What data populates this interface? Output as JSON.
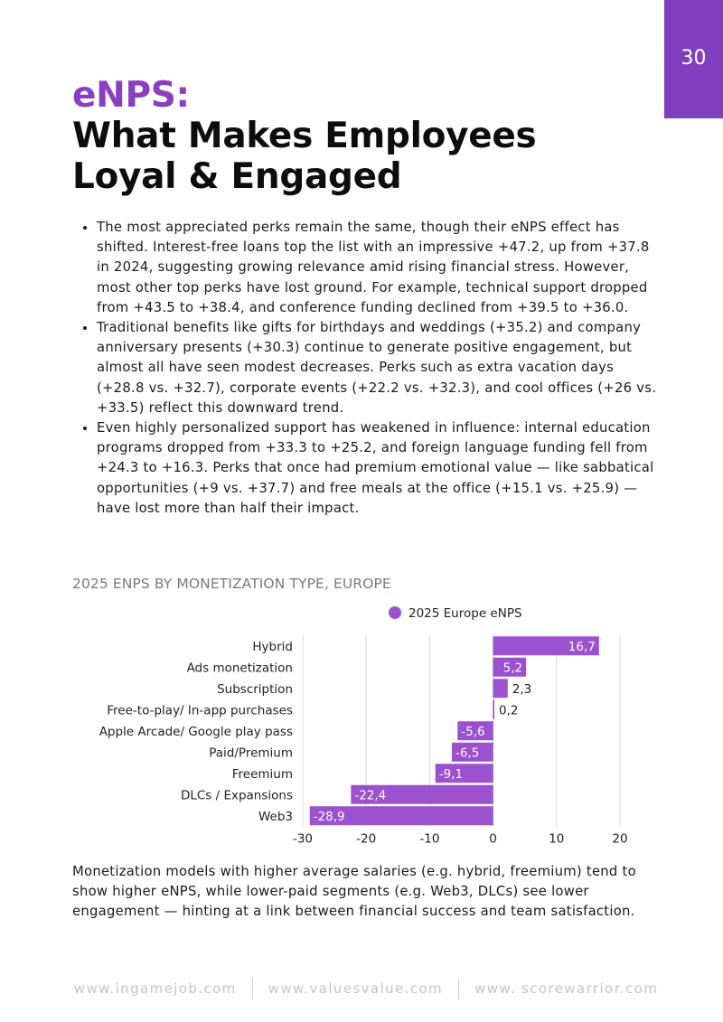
{
  "page_number": "30",
  "title": {
    "accent": "eNPS:",
    "line1": "What Makes Employees",
    "line2": "Loyal & Engaged"
  },
  "bullets": [
    "The most appreciated perks remain the same, though their eNPS effect has shifted. Interest-free loans top the list with an impressive +47.2, up from +37.8 in 2024, suggesting growing relevance amid rising financial stress. However, most other top perks have lost ground. For example, technical support dropped from +43.5 to +38.4, and conference funding declined from +39.5 to +36.0.",
    "Traditional benefits like gifts for birthdays and weddings (+35.2) and company anniversary presents (+30.3) continue to generate positive engagement, but almost all have seen modest decreases. Perks such as extra vacation days (+28.8 vs. +32.7), corporate events (+22.2 vs. +32.3), and cool offices (+26 vs. +33.5) reflect this downward trend.",
    "Even highly personalized support has weakened in influence: internal education programs dropped from +33.3 to +25.2, and foreign language funding fell from +24.3 to +16.3. Perks that once had premium emotional value — like sabbatical opportunities (+9 vs. +37.7) and free meals at the office (+15.1 vs. +25.9) — have lost more than half their impact."
  ],
  "chart_title": "2025 ENPS BY MONETIZATION TYPE, EUROPE",
  "chart_data": {
    "type": "bar",
    "orientation": "horizontal",
    "categories": [
      "Hybrid",
      "Ads monetization",
      "Subscription",
      "Free-to-play/ In-app purchases",
      "Apple Arcade/ Google play pass",
      "Paid/Premium",
      "Freemium",
      "DLCs / Expansions",
      "Web3"
    ],
    "series": [
      {
        "name": "2025 Europe eNPS",
        "values": [
          16.7,
          5.2,
          2.3,
          0.2,
          -5.6,
          -6.5,
          -9.1,
          -22.4,
          -28.9
        ]
      }
    ],
    "data_labels": [
      "16,7",
      "5,2",
      "2,3",
      "0,2",
      "-5,6",
      "-6,5",
      "-9,1",
      "-22,4",
      "-28,9"
    ],
    "x_ticks": [
      -30,
      -20,
      -10,
      0,
      10,
      20
    ],
    "x_tick_labels": [
      "-30",
      "-20",
      "-10",
      "0",
      "10",
      "20"
    ],
    "xlim": [
      -30,
      20
    ],
    "grid": true,
    "legend_position": "top",
    "bar_color": "#9c51cf"
  },
  "conclusion": "Monetization models with higher average salaries (e.g. hybrid, freemium) tend to show higher eNPS, while lower-paid segments (e.g. Web3, DLCs) see lower engagement — hinting at a link between financial success and team satisfaction.",
  "footer": {
    "links": [
      "www.ingamejob.com",
      "www.valuesvalue.com",
      "www. scorewarrior.com"
    ]
  },
  "colors": {
    "accent": "#8a3fc0",
    "tab": "#7f3fbf",
    "bar": "#9c51cf"
  }
}
